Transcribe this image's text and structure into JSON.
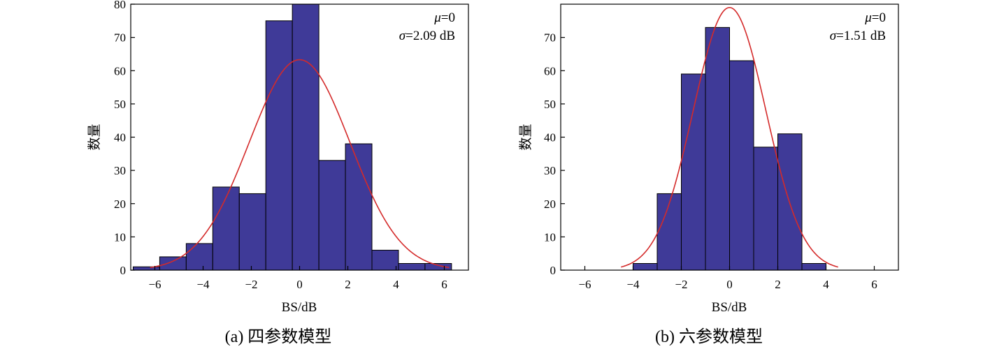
{
  "chart_data": [
    {
      "type": "bar",
      "subtype": "histogram",
      "caption": "(a) 四参数模型",
      "xlabel": "BS/dB",
      "ylabel": "数量",
      "xlim": [
        -7,
        7
      ],
      "ylim": [
        0,
        80
      ],
      "xticks": [
        -6,
        -4,
        -2,
        0,
        2,
        4,
        6
      ],
      "yticks": [
        0,
        10,
        20,
        30,
        40,
        50,
        60,
        70,
        80
      ],
      "bins": [
        {
          "x0": -6.9,
          "x1": -5.8,
          "value": 1
        },
        {
          "x0": -5.8,
          "x1": -4.7,
          "value": 4
        },
        {
          "x0": -4.7,
          "x1": -3.6,
          "value": 8
        },
        {
          "x0": -3.6,
          "x1": -2.5,
          "value": 25
        },
        {
          "x0": -2.5,
          "x1": -1.4,
          "value": 23
        },
        {
          "x0": -1.4,
          "x1": -0.3,
          "value": 75
        },
        {
          "x0": -0.3,
          "x1": 0.8,
          "value": 81
        },
        {
          "x0": 0.8,
          "x1": 1.9,
          "value": 33
        },
        {
          "x0": 1.9,
          "x1": 3.0,
          "value": 38
        },
        {
          "x0": 3.0,
          "x1": 4.1,
          "value": 6
        },
        {
          "x0": 4.1,
          "x1": 5.2,
          "value": 2
        },
        {
          "x0": 5.2,
          "x1": 6.3,
          "value": 2
        }
      ],
      "fit": {
        "mu": 0,
        "sigma": 2.09,
        "peak": 63.3,
        "xrange": [
          -6.2,
          6.2
        ]
      },
      "annotation": {
        "mu_text": "=0",
        "sigma_text": "=2.09 dB"
      },
      "bar_color": "#3f3a98",
      "fit_color": "#d42a2a",
      "grid": false
    },
    {
      "type": "bar",
      "subtype": "histogram",
      "caption": "(b) 六参数模型",
      "xlabel": "BS/dB",
      "ylabel": "数量",
      "xlim": [
        -7,
        7
      ],
      "ylim": [
        0,
        80
      ],
      "xticks": [
        -6,
        -4,
        -2,
        0,
        2,
        4,
        6
      ],
      "yticks": [
        0,
        10,
        20,
        30,
        40,
        50,
        60,
        70
      ],
      "bins": [
        {
          "x0": -4.0,
          "x1": -3.0,
          "value": 2
        },
        {
          "x0": -3.0,
          "x1": -2.0,
          "value": 23
        },
        {
          "x0": -2.0,
          "x1": -1.0,
          "value": 59
        },
        {
          "x0": -1.0,
          "x1": 0.0,
          "value": 73
        },
        {
          "x0": 0.0,
          "x1": 1.0,
          "value": 63
        },
        {
          "x0": 1.0,
          "x1": 2.0,
          "value": 37
        },
        {
          "x0": 2.0,
          "x1": 3.0,
          "value": 41
        },
        {
          "x0": 3.0,
          "x1": 4.0,
          "value": 2
        }
      ],
      "fit": {
        "mu": 0,
        "sigma": 1.51,
        "peak": 79,
        "xrange": [
          -4.5,
          4.5
        ]
      },
      "annotation": {
        "mu_text": "=0",
        "sigma_text": "=1.51 dB"
      },
      "bar_color": "#3f3a98",
      "fit_color": "#d42a2a",
      "grid": false
    }
  ]
}
